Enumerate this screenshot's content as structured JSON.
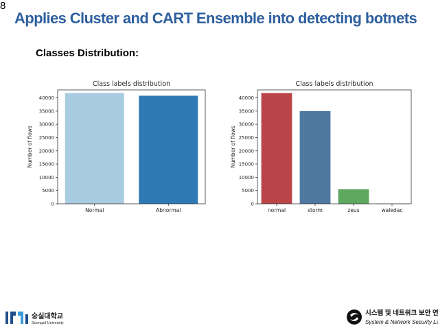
{
  "slide": {
    "number": "8",
    "title": "Applies Cluster and CART Ensemble  into detecting botnets",
    "subtitle": "Classes Distribution:"
  },
  "chart_data": [
    {
      "type": "bar",
      "title": "Class labels distribution",
      "xlabel": "",
      "ylabel": "Number of flows",
      "categories": [
        "Normal",
        "Abnormal"
      ],
      "values": [
        41800,
        40800
      ],
      "colors": [
        "#a9cbe0",
        "#2f7ab5"
      ],
      "ylim": [
        0,
        43000
      ],
      "yticks": [
        0,
        5000,
        10000,
        15000,
        20000,
        25000,
        30000,
        35000,
        40000
      ]
    },
    {
      "type": "bar",
      "title": "Class labels distribution",
      "xlabel": "",
      "ylabel": "Number of flows",
      "categories": [
        "normal",
        "storm",
        "zeus",
        "waledac"
      ],
      "values": [
        41800,
        35000,
        5500,
        100
      ],
      "colors": [
        "#b94548",
        "#4d79a0",
        "#5ea75f",
        "#8b6aa8"
      ],
      "ylim": [
        0,
        43000
      ],
      "yticks": [
        0,
        5000,
        10000,
        15000,
        20000,
        25000,
        30000,
        35000,
        40000
      ]
    }
  ],
  "footer": {
    "university_kr": "숭실대학교",
    "university_en": "Soongsil University",
    "lab_kr": "시스템 및 네트워크 보안 연구실",
    "lab_en": "System & Network Security Lab."
  }
}
